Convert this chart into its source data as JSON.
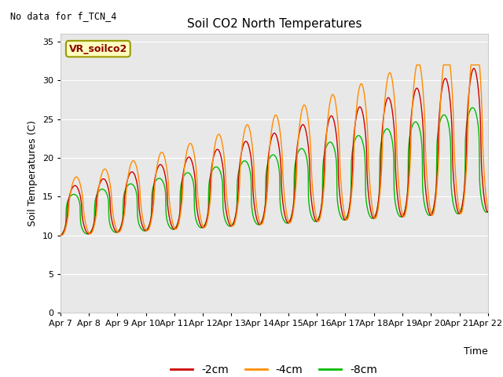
{
  "title": "Soil CO2 North Temperatures",
  "no_data_text": "No data for f_TCN_4",
  "vr_label": "VR_soilco2",
  "ylabel": "Soil Temperatures (C)",
  "xlabel": "Time",
  "ylim": [
    0,
    36
  ],
  "yticks": [
    0,
    5,
    10,
    15,
    20,
    25,
    30,
    35
  ],
  "x_labels": [
    "Apr 7",
    "Apr 8",
    "Apr 9",
    "Apr 10",
    "Apr 11",
    "Apr 12",
    "Apr 13",
    "Apr 14",
    "Apr 15",
    "Apr 16",
    "Apr 17",
    "Apr 18",
    "Apr 19",
    "Apr 20",
    "Apr 21",
    "Apr 22"
  ],
  "line_colors": [
    "#cc0000",
    "#ff8c00",
    "#00bb00"
  ],
  "line_labels": [
    "-2cm",
    "-4cm",
    "-8cm"
  ],
  "background_color": "#e8e8e8",
  "plot_bg": "#e0e0e0",
  "legend_box_facecolor": "#ffffc0",
  "legend_box_edgecolor": "#999900"
}
